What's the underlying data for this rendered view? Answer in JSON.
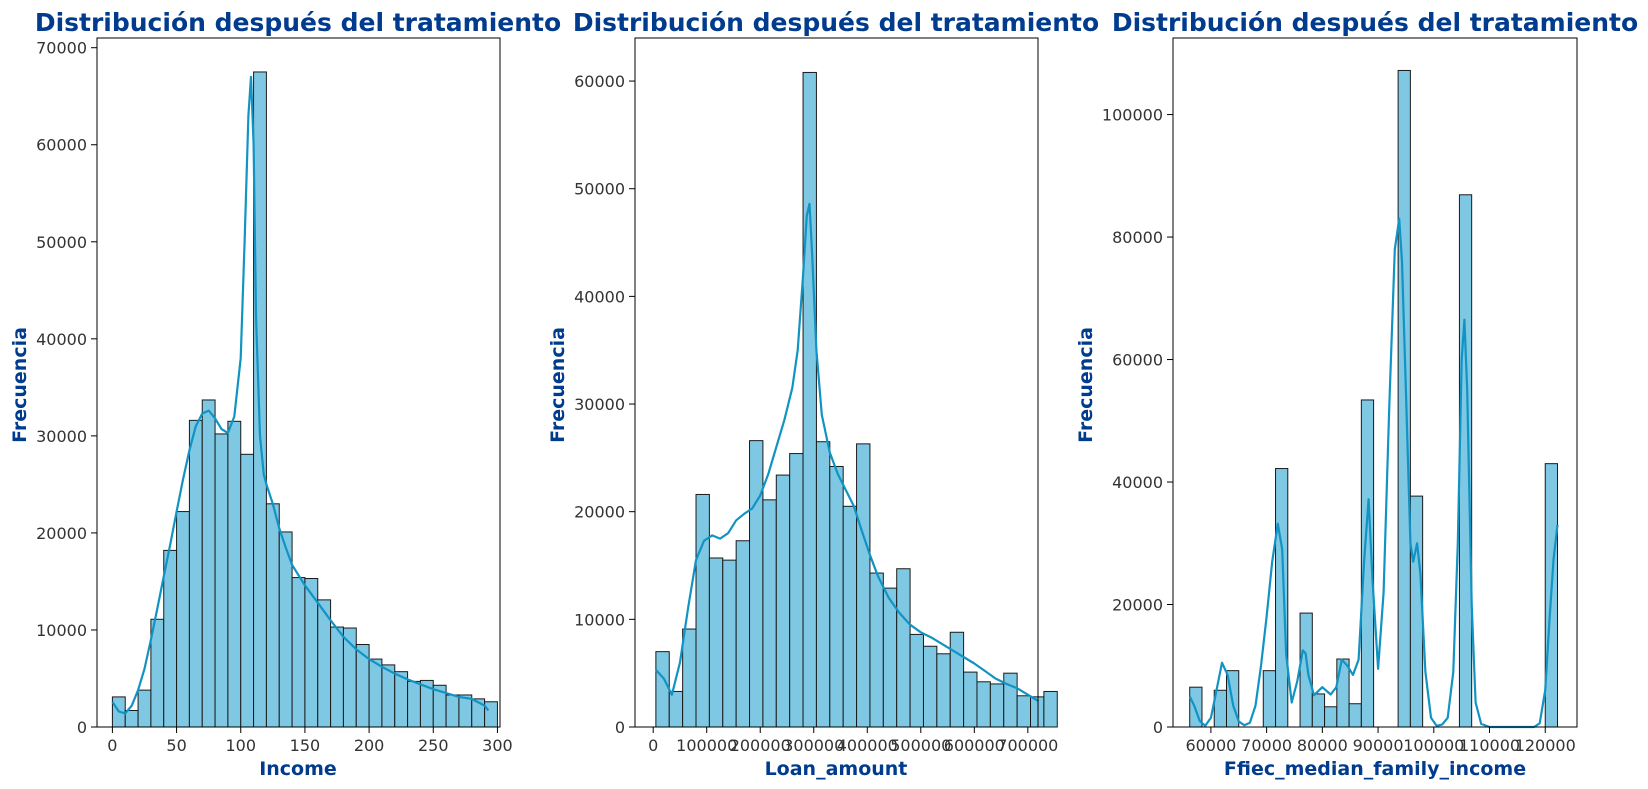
{
  "chart_data": [
    {
      "type": "bar",
      "subtype": "histogram with kde",
      "title": "Distribución después del tratamiento",
      "xlabel": "Income",
      "ylabel": "Frecuencia",
      "xlim": [
        -12,
        302
      ],
      "ylim": [
        0,
        71000
      ],
      "xticks": [
        0,
        50,
        100,
        150,
        200,
        250,
        300
      ],
      "yticks": [
        0,
        10000,
        20000,
        30000,
        40000,
        50000,
        60000,
        70000
      ],
      "bin_width": 10,
      "bins": [
        {
          "x0": 0,
          "x1": 10,
          "count": 3100
        },
        {
          "x0": 10,
          "x1": 20,
          "count": 1700
        },
        {
          "x0": 20,
          "x1": 30,
          "count": 3800
        },
        {
          "x0": 30,
          "x1": 40,
          "count": 11100
        },
        {
          "x0": 40,
          "x1": 50,
          "count": 18200
        },
        {
          "x0": 50,
          "x1": 60,
          "count": 22200
        },
        {
          "x0": 60,
          "x1": 70,
          "count": 31600
        },
        {
          "x0": 70,
          "x1": 80,
          "count": 33700
        },
        {
          "x0": 80,
          "x1": 90,
          "count": 30200
        },
        {
          "x0": 90,
          "x1": 100,
          "count": 31500
        },
        {
          "x0": 100,
          "x1": 110,
          "count": 28100
        },
        {
          "x0": 110,
          "x1": 120,
          "count": 67500
        },
        {
          "x0": 120,
          "x1": 130,
          "count": 23000
        },
        {
          "x0": 130,
          "x1": 140,
          "count": 20100
        },
        {
          "x0": 140,
          "x1": 150,
          "count": 15400
        },
        {
          "x0": 150,
          "x1": 160,
          "count": 15300
        },
        {
          "x0": 160,
          "x1": 170,
          "count": 13100
        },
        {
          "x0": 170,
          "x1": 180,
          "count": 10300
        },
        {
          "x0": 180,
          "x1": 190,
          "count": 10200
        },
        {
          "x0": 190,
          "x1": 200,
          "count": 8500
        },
        {
          "x0": 200,
          "x1": 210,
          "count": 7000
        },
        {
          "x0": 210,
          "x1": 220,
          "count": 6400
        },
        {
          "x0": 220,
          "x1": 230,
          "count": 5700
        },
        {
          "x0": 230,
          "x1": 240,
          "count": 4700
        },
        {
          "x0": 240,
          "x1": 250,
          "count": 4800
        },
        {
          "x0": 250,
          "x1": 260,
          "count": 4300
        },
        {
          "x0": 260,
          "x1": 270,
          "count": 3300
        },
        {
          "x0": 270,
          "x1": 280,
          "count": 3300
        },
        {
          "x0": 280,
          "x1": 290,
          "count": 2900
        },
        {
          "x0": 290,
          "x1": 300,
          "count": 2600
        }
      ],
      "kde": {
        "x": [
          0,
          5,
          10,
          15,
          20,
          25,
          30,
          35,
          40,
          45,
          50,
          55,
          60,
          65,
          70,
          75,
          80,
          85,
          90,
          95,
          100,
          103,
          106,
          108,
          110,
          112,
          115,
          118,
          120,
          125,
          130,
          135,
          140,
          150,
          160,
          170,
          180,
          190,
          200,
          210,
          220,
          230,
          240,
          250,
          260,
          270,
          280,
          290,
          293
        ],
        "y": [
          2600,
          1600,
          1400,
          2200,
          3800,
          6000,
          9000,
          12200,
          15500,
          18800,
          22200,
          25500,
          28500,
          31000,
          32300,
          32600,
          31800,
          30700,
          30300,
          32000,
          38000,
          50000,
          63000,
          67000,
          60000,
          42000,
          30000,
          26000,
          25000,
          23000,
          20500,
          18500,
          16700,
          14600,
          12800,
          11000,
          9300,
          8000,
          7000,
          6200,
          5500,
          4900,
          4400,
          3900,
          3500,
          3100,
          2900,
          2200,
          1700
        ]
      },
      "bar_color": "#7ec8e3",
      "kde_color": "#1193c4"
    },
    {
      "type": "bar",
      "subtype": "histogram with kde",
      "title": "Distribución después del tratamiento",
      "xlabel": "Loan_amount",
      "ylabel": "Frecuencia",
      "xlim": [
        -34000,
        719000
      ],
      "ylim": [
        0,
        64000
      ],
      "xticks": [
        0,
        100000,
        200000,
        300000,
        400000,
        500000,
        600000,
        700000
      ],
      "yticks": [
        0,
        10000,
        20000,
        30000,
        40000,
        50000,
        60000
      ],
      "bin_width": 25000,
      "bins": [
        {
          "x0": 5000,
          "x1": 30000,
          "count": 7000
        },
        {
          "x0": 30000,
          "x1": 55000,
          "count": 3300
        },
        {
          "x0": 55000,
          "x1": 80000,
          "count": 9100
        },
        {
          "x0": 80000,
          "x1": 105000,
          "count": 21600
        },
        {
          "x0": 105000,
          "x1": 130000,
          "count": 15700
        },
        {
          "x0": 130000,
          "x1": 155000,
          "count": 15500
        },
        {
          "x0": 155000,
          "x1": 180000,
          "count": 17300
        },
        {
          "x0": 180000,
          "x1": 205000,
          "count": 26600
        },
        {
          "x0": 205000,
          "x1": 230000,
          "count": 21100
        },
        {
          "x0": 230000,
          "x1": 255000,
          "count": 23400
        },
        {
          "x0": 255000,
          "x1": 280000,
          "count": 25400
        },
        {
          "x0": 280000,
          "x1": 305000,
          "count": 60800
        },
        {
          "x0": 305000,
          "x1": 330000,
          "count": 26500
        },
        {
          "x0": 330000,
          "x1": 355000,
          "count": 24200
        },
        {
          "x0": 355000,
          "x1": 380000,
          "count": 20500
        },
        {
          "x0": 380000,
          "x1": 405000,
          "count": 26300
        },
        {
          "x0": 405000,
          "x1": 430000,
          "count": 14300
        },
        {
          "x0": 430000,
          "x1": 455000,
          "count": 12900
        },
        {
          "x0": 455000,
          "x1": 480000,
          "count": 14700
        },
        {
          "x0": 480000,
          "x1": 505000,
          "count": 8600
        },
        {
          "x0": 505000,
          "x1": 530000,
          "count": 7500
        },
        {
          "x0": 530000,
          "x1": 555000,
          "count": 6800
        },
        {
          "x0": 555000,
          "x1": 580000,
          "count": 8800
        },
        {
          "x0": 580000,
          "x1": 605000,
          "count": 5100
        },
        {
          "x0": 605000,
          "x1": 630000,
          "count": 4200
        },
        {
          "x0": 630000,
          "x1": 655000,
          "count": 4000
        },
        {
          "x0": 655000,
          "x1": 680000,
          "count": 5000
        },
        {
          "x0": 680000,
          "x1": 705000,
          "count": 2900
        },
        {
          "x0": 705000,
          "x1": 730000,
          "count": 2800
        },
        {
          "x0": 730000,
          "x1": 755000,
          "count": 3300
        }
      ],
      "kde": {
        "x": [
          5000,
          20000,
          35000,
          50000,
          65000,
          80000,
          95000,
          110000,
          125000,
          140000,
          155000,
          170000,
          185000,
          200000,
          215000,
          230000,
          245000,
          260000,
          270000,
          280000,
          287000,
          292000,
          297000,
          305000,
          315000,
          330000,
          345000,
          360000,
          375000,
          390000,
          405000,
          420000,
          440000,
          460000,
          480000,
          500000,
          520000,
          540000,
          560000,
          580000,
          600000,
          620000,
          640000,
          660000,
          680000,
          700000,
          720000
        ],
        "y": [
          5300,
          4500,
          3000,
          6000,
          11000,
          15500,
          17300,
          17800,
          17500,
          18000,
          19200,
          19800,
          20300,
          21500,
          23500,
          26000,
          28500,
          31500,
          35000,
          42000,
          47500,
          48600,
          44000,
          35000,
          29000,
          25500,
          23500,
          22000,
          20500,
          18200,
          16000,
          14000,
          12000,
          10600,
          9500,
          8800,
          8300,
          7700,
          7100,
          6500,
          5900,
          5200,
          4500,
          4000,
          3600,
          3000,
          2400
        ]
      },
      "bar_color": "#7ec8e3",
      "kde_color": "#1193c4"
    },
    {
      "type": "bar",
      "subtype": "histogram with kde",
      "title": "Distribución después del tratamiento",
      "xlabel": "Ffiec_median_family_income",
      "ylabel": "Frecuencia",
      "xlim": [
        53200,
        125700
      ],
      "ylim": [
        0,
        112500
      ],
      "xticks": [
        60000,
        70000,
        80000,
        90000,
        100000,
        110000,
        120000
      ],
      "yticks": [
        0,
        20000,
        40000,
        60000,
        80000,
        100000
      ],
      "bin_width": 2200,
      "bins": [
        {
          "x0": 56200,
          "x1": 58400,
          "count": 6500
        },
        {
          "x0": 60600,
          "x1": 62800,
          "count": 6000
        },
        {
          "x0": 62800,
          "x1": 65000,
          "count": 9200
        },
        {
          "x0": 69400,
          "x1": 71600,
          "count": 9200
        },
        {
          "x0": 71600,
          "x1": 73800,
          "count": 42200
        },
        {
          "x0": 76000,
          "x1": 78200,
          "count": 18600
        },
        {
          "x0": 78200,
          "x1": 80400,
          "count": 5400
        },
        {
          "x0": 80400,
          "x1": 82600,
          "count": 3300
        },
        {
          "x0": 82600,
          "x1": 84800,
          "count": 11100
        },
        {
          "x0": 84800,
          "x1": 87000,
          "count": 3800
        },
        {
          "x0": 87000,
          "x1": 89200,
          "count": 53400
        },
        {
          "x0": 93600,
          "x1": 95800,
          "count": 107200
        },
        {
          "x0": 95800,
          "x1": 98000,
          "count": 37700
        },
        {
          "x0": 104600,
          "x1": 106800,
          "count": 86900
        },
        {
          "x0": 120000,
          "x1": 122200,
          "count": 43000
        }
      ],
      "kde": {
        "x": [
          56200,
          57000,
          58000,
          59000,
          60000,
          61000,
          62000,
          63000,
          64000,
          65000,
          66000,
          67000,
          68000,
          69000,
          70000,
          71000,
          72000,
          72800,
          73500,
          74500,
          75500,
          76500,
          77000,
          77500,
          78500,
          80000,
          81500,
          82500,
          83500,
          84500,
          85500,
          86500,
          87500,
          88300,
          89000,
          90000,
          91000,
          92000,
          93000,
          93800,
          94300,
          95000,
          95800,
          96300,
          97000,
          97600,
          98500,
          99500,
          100500,
          101500,
          102500,
          103500,
          104300,
          105000,
          105500,
          106000,
          106800,
          107500,
          108500,
          110000,
          112000,
          114000,
          116000,
          118000,
          119000,
          120000,
          120800,
          121500,
          122200
        ],
        "y": [
          5000,
          3500,
          1000,
          200,
          1500,
          6000,
          10500,
          8500,
          3500,
          900,
          300,
          700,
          3500,
          10000,
          18000,
          27000,
          33200,
          29000,
          12000,
          4000,
          7500,
          12500,
          12000,
          8500,
          5200,
          6500,
          5300,
          6500,
          11000,
          10000,
          8500,
          11000,
          27000,
          37200,
          24000,
          9500,
          22000,
          52000,
          78000,
          83000,
          76000,
          55000,
          30000,
          27000,
          30000,
          25000,
          9000,
          1500,
          200,
          400,
          1500,
          9000,
          30000,
          60000,
          66500,
          55000,
          20000,
          4000,
          500,
          0,
          0,
          0,
          0,
          0,
          600,
          6000,
          18000,
          27500,
          33000
        ]
      },
      "bar_color": "#7ec8e3",
      "kde_color": "#1193c4"
    }
  ]
}
